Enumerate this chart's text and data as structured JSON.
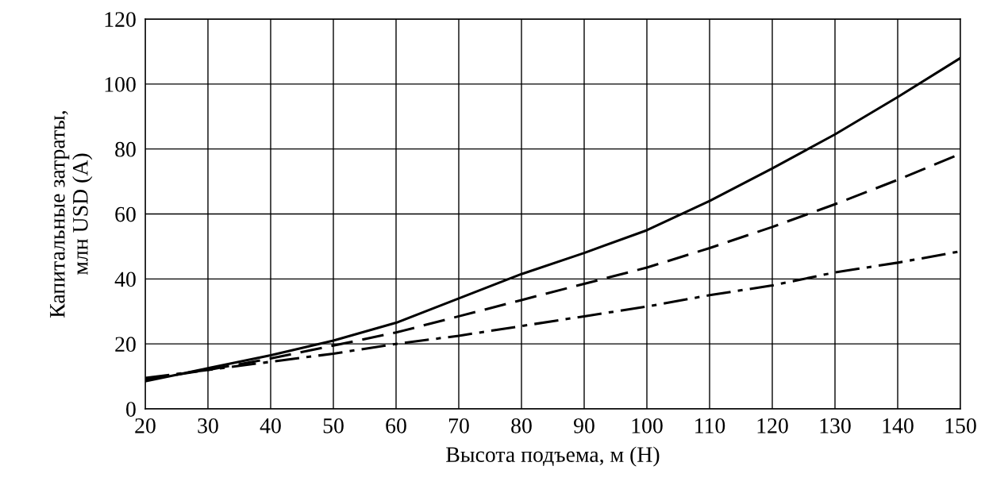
{
  "chart_data": {
    "type": "line",
    "xlabel": "Высота подъема, м (H)",
    "ylabel": "Капитальные затраты,\nмлн USD (A)",
    "x": [
      20,
      30,
      40,
      50,
      60,
      70,
      80,
      90,
      100,
      110,
      120,
      130,
      140,
      150
    ],
    "series": [
      {
        "color": "#000000",
        "line_style": "solid",
        "values": [
          8.5,
          12.5,
          16.5,
          21,
          26.5,
          34,
          41.5,
          48,
          55,
          64,
          74,
          84.5,
          96,
          108
        ]
      },
      {
        "color": "#000000",
        "line_style": "dashed",
        "values": [
          9,
          12,
          15.5,
          19.5,
          23.5,
          28.5,
          33.5,
          38.5,
          43.5,
          49.5,
          56,
          63,
          70.5,
          78.5
        ]
      },
      {
        "color": "#000000",
        "line_style": "dashdot",
        "values": [
          9.5,
          12,
          14.5,
          17,
          20,
          22.5,
          25.5,
          28.5,
          31.5,
          35,
          38,
          42,
          45,
          48.5
        ]
      }
    ],
    "xlim": [
      20,
      150
    ],
    "xticks": [
      20,
      30,
      40,
      50,
      60,
      70,
      80,
      90,
      100,
      110,
      120,
      130,
      140,
      150
    ],
    "ylim": [
      0,
      120
    ],
    "yticks": [
      0,
      20,
      40,
      60,
      80,
      100,
      120
    ],
    "grid": true,
    "marker": "none"
  }
}
